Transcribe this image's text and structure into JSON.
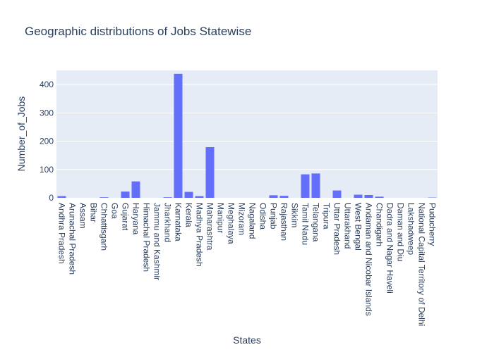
{
  "chart_data": {
    "type": "bar",
    "title": "Geographic distributions of Jobs Statewise",
    "xlabel": "States",
    "ylabel": "Number_of_Jobs",
    "ylim": [
      0,
      450
    ],
    "yticks": [
      0,
      100,
      200,
      300,
      400
    ],
    "grid": true,
    "bar_color": "#636efa",
    "plot_bg": "#e5ecf6",
    "categories": [
      "Andhra Pradesh",
      "Arunachal Pradesh",
      "Assam",
      "Bihar",
      "Chhattisgarh",
      "Goa",
      "Gujarat",
      "Haryana",
      "Himachal Pradesh",
      "Jammu and Kashmir",
      "Jharkhand",
      "Karnataka",
      "Kerala",
      "Madhya Pradesh",
      "Maharashtra",
      "Manipur",
      "Meghalaya",
      "Mizoram",
      "Nagaland",
      "Odisha",
      "Punjab",
      "Rajasthan",
      "Sikkim",
      "Tamil Nadu",
      "Telangana",
      "Tripura",
      "Uttar Pradesh",
      "Uttarakhand",
      "West Bengal",
      "Andaman and Nicobar Islands",
      "Chandigarh",
      "Dadra and Nagar Haveli",
      "Daman and Diu",
      "Lakshadweep",
      "National Capital Territory of Delhi",
      "Puducherry"
    ],
    "values": [
      6,
      0,
      0,
      0,
      2,
      0,
      22,
      58,
      0,
      0,
      2,
      438,
      21,
      6,
      179,
      0,
      0,
      0,
      0,
      0,
      9,
      7,
      0,
      83,
      86,
      0,
      26,
      0,
      11,
      10,
      4,
      0,
      0,
      0,
      0,
      1
    ]
  }
}
